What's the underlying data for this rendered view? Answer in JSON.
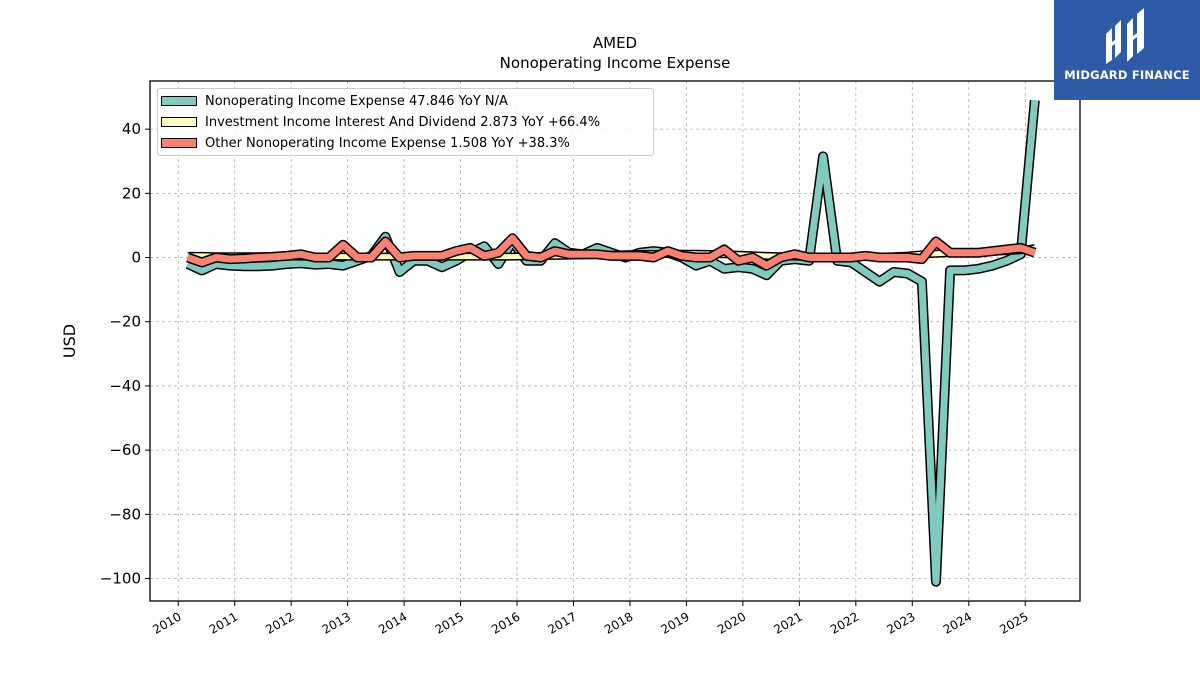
{
  "logo": {
    "text": "MIDGARD FINANCE",
    "icon": "midgard-monogram-icon",
    "background": "#2f5aa8"
  },
  "chart_data": {
    "type": "line",
    "title": "AMED",
    "subtitle": "Nonoperating Income Expense",
    "ylabel": "USD",
    "xlabel": "",
    "xlim": [
      2009.5,
      2025.97
    ],
    "ylim": [
      -107,
      55
    ],
    "grid": true,
    "legend_position": "top-left",
    "x_ticks": [
      2010,
      2011,
      2012,
      2013,
      2014,
      2015,
      2016,
      2017,
      2018,
      2019,
      2020,
      2021,
      2022,
      2023,
      2024,
      2025
    ],
    "x_tick_labels": [
      "2010",
      "2011",
      "2012",
      "2013",
      "2014",
      "2015",
      "2016",
      "2017",
      "2018",
      "2019",
      "2020",
      "2021",
      "2022",
      "2023",
      "2024",
      "2025"
    ],
    "y_ticks": [
      40,
      20,
      0,
      -20,
      -40,
      -60,
      -80,
      -100
    ],
    "y_tick_labels": [
      "40",
      "20",
      "0",
      "−20",
      "−40",
      "−60",
      "−80",
      "−100"
    ],
    "x": [
      2010.17,
      2010.42,
      2010.67,
      2010.92,
      2011.17,
      2011.42,
      2011.67,
      2011.92,
      2012.17,
      2012.42,
      2012.67,
      2012.92,
      2013.17,
      2013.42,
      2013.67,
      2013.92,
      2014.17,
      2014.42,
      2014.67,
      2014.92,
      2015.17,
      2015.42,
      2015.67,
      2015.92,
      2016.17,
      2016.42,
      2016.67,
      2016.92,
      2017.17,
      2017.42,
      2017.67,
      2017.92,
      2018.17,
      2018.42,
      2018.67,
      2018.92,
      2019.17,
      2019.42,
      2019.67,
      2019.92,
      2020.17,
      2020.42,
      2020.67,
      2020.92,
      2021.17,
      2021.42,
      2021.67,
      2021.92,
      2022.17,
      2022.42,
      2022.67,
      2022.92,
      2023.17,
      2023.42,
      2023.67,
      2023.92,
      2024.17,
      2024.42,
      2024.67,
      2024.92,
      2025.17
    ],
    "series": [
      {
        "name": "Nonoperating Income Expense",
        "legend_label": "Nonoperating Income Expense  47.846 YoY N/A",
        "color": "#80cbc0",
        "width": 7,
        "values": [
          -2,
          -4,
          -2,
          -2.5,
          -2.7,
          -2.7,
          -2.5,
          -2,
          -1.8,
          -2.2,
          -2,
          -2.5,
          -1,
          0.5,
          6.5,
          -4.5,
          -1,
          -1,
          -3,
          -1,
          1.5,
          3.5,
          -2,
          5,
          -1,
          -1,
          4.5,
          1.5,
          1,
          3,
          1.5,
          0,
          1.5,
          2,
          1.5,
          0,
          -2.5,
          -1,
          -3.5,
          -3,
          -3.5,
          -5.5,
          -1,
          -0.5,
          -1,
          31.5,
          -1,
          -1.5,
          -4.5,
          -7.5,
          -4.5,
          -5,
          -7.5,
          -101,
          -4,
          -4,
          -3.5,
          -2.5,
          -1,
          1,
          49
        ]
      },
      {
        "name": "Investment Income Interest And Dividend",
        "legend_label": "Investment Income Interest And Dividend  2.873 YoY +66.4%",
        "color": "#ffffbf",
        "width": 5,
        "values": [
          0.5,
          0.5,
          0.4,
          0.4,
          0.4,
          0.4,
          0.4,
          0.3,
          0.3,
          0.3,
          0.3,
          0.3,
          0.3,
          0.3,
          0.3,
          0.3,
          0.3,
          0.3,
          0.3,
          0.3,
          0.3,
          0.3,
          0.3,
          0.3,
          0.4,
          0.5,
          0.5,
          0.6,
          0.7,
          0.8,
          0.9,
          1,
          1.1,
          1.1,
          1.1,
          1.2,
          1.2,
          1.1,
          1,
          0.9,
          0.7,
          0.5,
          0.4,
          0.3,
          0.2,
          0.2,
          0.2,
          0.2,
          0.2,
          0.3,
          0.4,
          0.6,
          1,
          1.2,
          1.4,
          1.6,
          1.7,
          1.8,
          2,
          2.3,
          2.9
        ]
      },
      {
        "name": "Other Nonoperating Income Expense",
        "legend_label": "Other Nonoperating Income Expense  1.508 YoY +38.3%",
        "color": "#fa8072",
        "width": 7,
        "values": [
          0,
          -1.5,
          0,
          -0.5,
          -0.3,
          0,
          0.2,
          0.5,
          1,
          0,
          0,
          4,
          0,
          0,
          5,
          0,
          0.5,
          0.5,
          0.5,
          2,
          3,
          0.5,
          1.5,
          6,
          0.5,
          0,
          2,
          1,
          1,
          1,
          0.5,
          0.5,
          0.5,
          0,
          2,
          0.5,
          0,
          0,
          2.5,
          -1,
          0,
          -2.5,
          0,
          1,
          0,
          0,
          0,
          0,
          0.5,
          0,
          0,
          0,
          -0.5,
          5,
          1.5,
          1.5,
          1.5,
          2,
          2.5,
          3,
          1.5
        ]
      }
    ]
  }
}
